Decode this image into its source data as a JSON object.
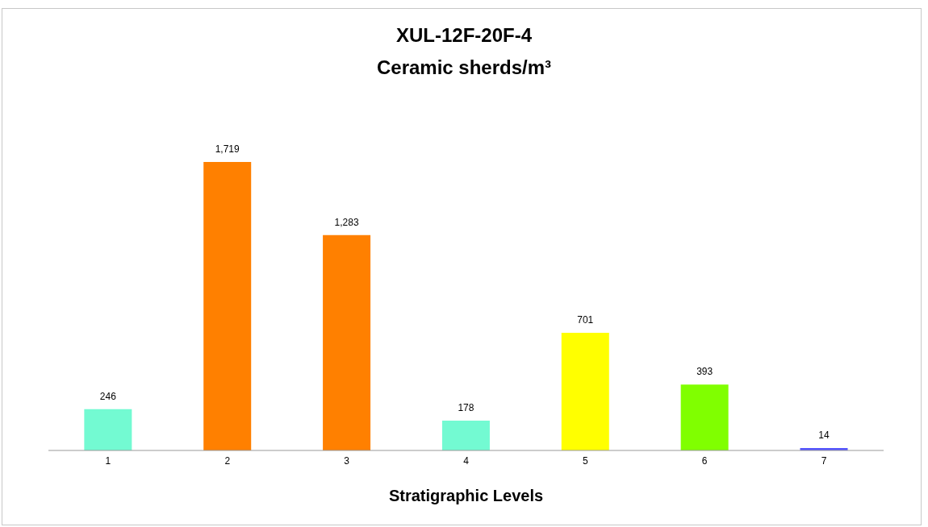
{
  "chart_data": {
    "type": "bar",
    "title": "XUL-12F-20F-4",
    "subtitle": "Ceramic sherds/m³",
    "xlabel": "Stratigraphic Levels",
    "categories": [
      "1",
      "2",
      "3",
      "4",
      "5",
      "6",
      "7"
    ],
    "values": [
      246,
      1719,
      1283,
      178,
      701,
      393,
      14
    ],
    "colors": [
      "#73fad2",
      "#ff8000",
      "#ff8000",
      "#73fad2",
      "#ffff00",
      "#80ff00",
      "#5555ff"
    ],
    "value_labels": [
      "246",
      "1,719",
      "1,283",
      "178",
      "701",
      "393",
      "14"
    ],
    "grid": false,
    "legend": false
  }
}
